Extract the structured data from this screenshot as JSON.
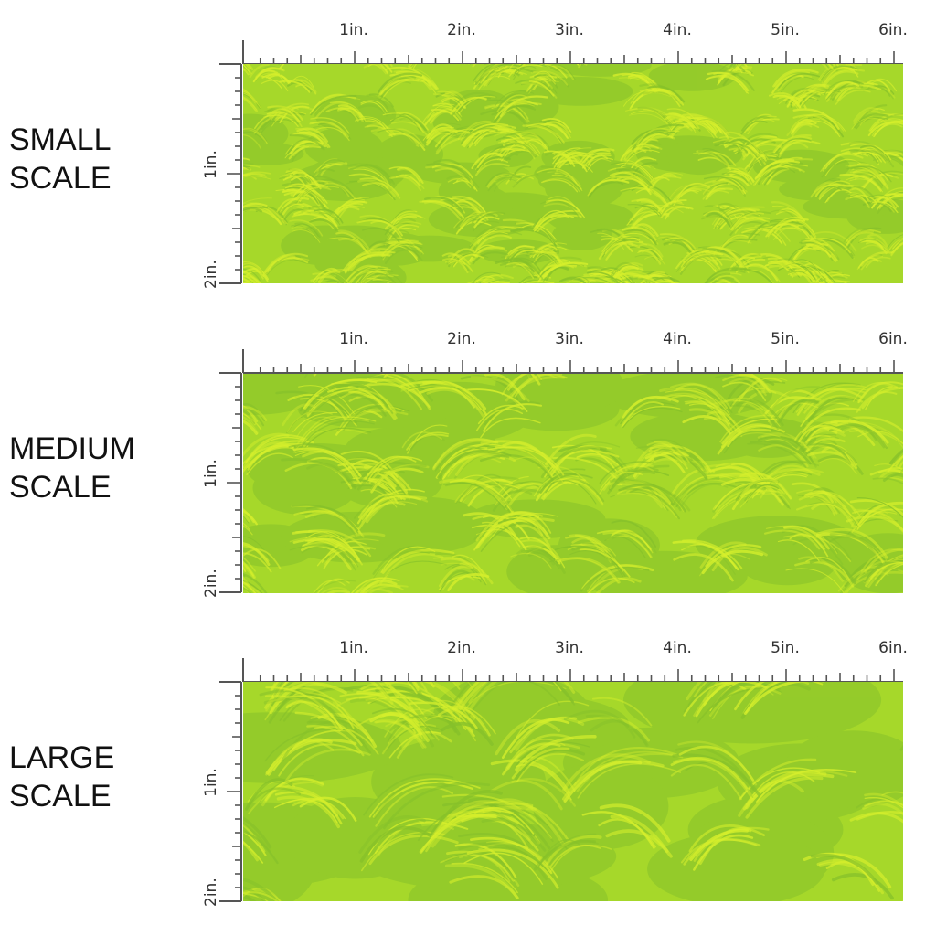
{
  "rows": [
    {
      "label_line1": "SMALL",
      "label_line2": "SCALE",
      "pattern_scale": "small"
    },
    {
      "label_line1": "MEDIUM",
      "label_line2": "SCALE",
      "pattern_scale": "medium"
    },
    {
      "label_line1": "LARGE",
      "label_line2": "SCALE",
      "pattern_scale": "large"
    }
  ],
  "ruler": {
    "horizontal_labels": [
      "1in.",
      "2in.",
      "3in.",
      "4in.",
      "5in.",
      "6in."
    ],
    "vertical_labels": [
      "1in.",
      "2in."
    ]
  },
  "colors": {
    "base": "#a6d82a",
    "highlight": "#d6ef2c",
    "shadow": "#86c12a",
    "ruler": "#555555"
  }
}
